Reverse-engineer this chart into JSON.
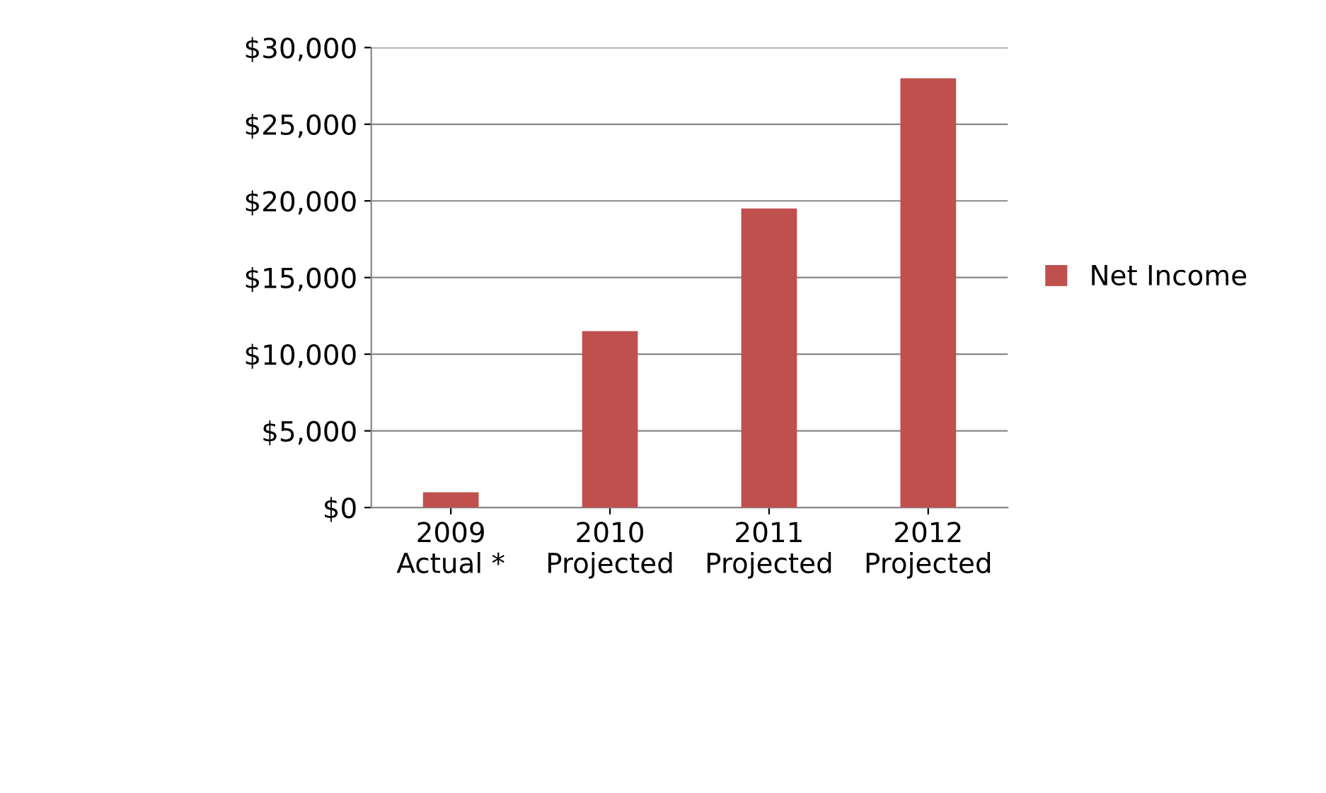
{
  "chart_data": {
    "type": "bar",
    "categories": [
      "2009\nActual *",
      "2010\nProjected",
      "2011\nProjected",
      "2012\nProjected"
    ],
    "series": [
      {
        "name": "Net Income",
        "color": "#c0504d",
        "values": [
          1000,
          11500,
          19500,
          28000
        ]
      }
    ],
    "ylim": [
      0,
      30000
    ],
    "yticks": [
      {
        "value": 0,
        "label": "$0"
      },
      {
        "value": 5000,
        "label": "$5,000"
      },
      {
        "value": 10000,
        "label": "$10,000"
      },
      {
        "value": 15000,
        "label": "$15,000"
      },
      {
        "value": 20000,
        "label": "$20,000"
      },
      {
        "value": 25000,
        "label": "$25,000"
      },
      {
        "value": 30000,
        "label": "$30,000"
      }
    ],
    "grid": "y",
    "legend": "right"
  }
}
